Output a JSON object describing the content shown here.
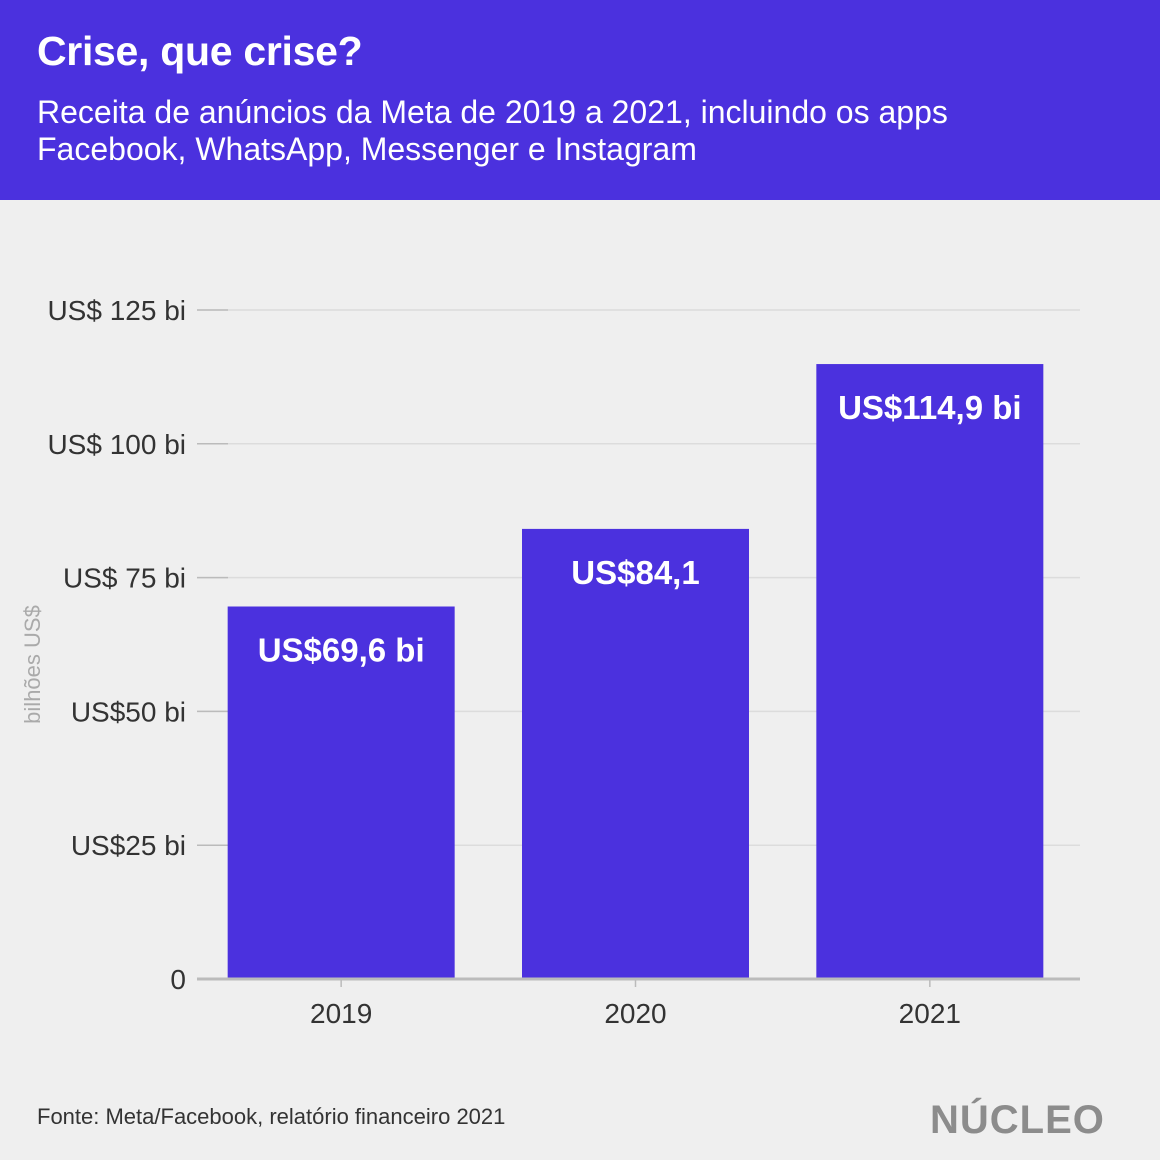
{
  "header": {
    "title": "Crise, que crise?",
    "subtitle_line1": "Receita de anúncios da Meta de 2019 a 2021, incluindo os apps",
    "subtitle_line2": "Facebook, WhatsApp, Messenger e Instagram"
  },
  "footer": {
    "source": "Fonte: Meta/Facebook, relatório financeiro 2021",
    "logo": "NÚCLEO"
  },
  "colors": {
    "header_bg": "#4b31de",
    "bar": "#4b31de",
    "background": "#efefef",
    "gridline": "#dcdcdc",
    "axis_text": "#333333",
    "ylabel_text": "#aaaaaa",
    "logo": "#8c8c8c"
  },
  "chart_data": {
    "type": "bar",
    "categories": [
      "2019",
      "2020",
      "2021"
    ],
    "values": [
      69.6,
      84.1,
      114.9
    ],
    "data_labels": [
      "US$69,6 bi",
      "US$84,1",
      "US$114,9 bi"
    ],
    "ylabel": "bilhões US$",
    "ylim": [
      0,
      125
    ],
    "yticks": [
      0,
      25,
      50,
      75,
      100,
      125
    ],
    "ytick_labels": [
      "0",
      "US$25 bi",
      "US$50 bi",
      "US$ 75 bi",
      "US$ 100 bi",
      "US$ 125 bi"
    ],
    "grid": true,
    "legend": "none"
  }
}
